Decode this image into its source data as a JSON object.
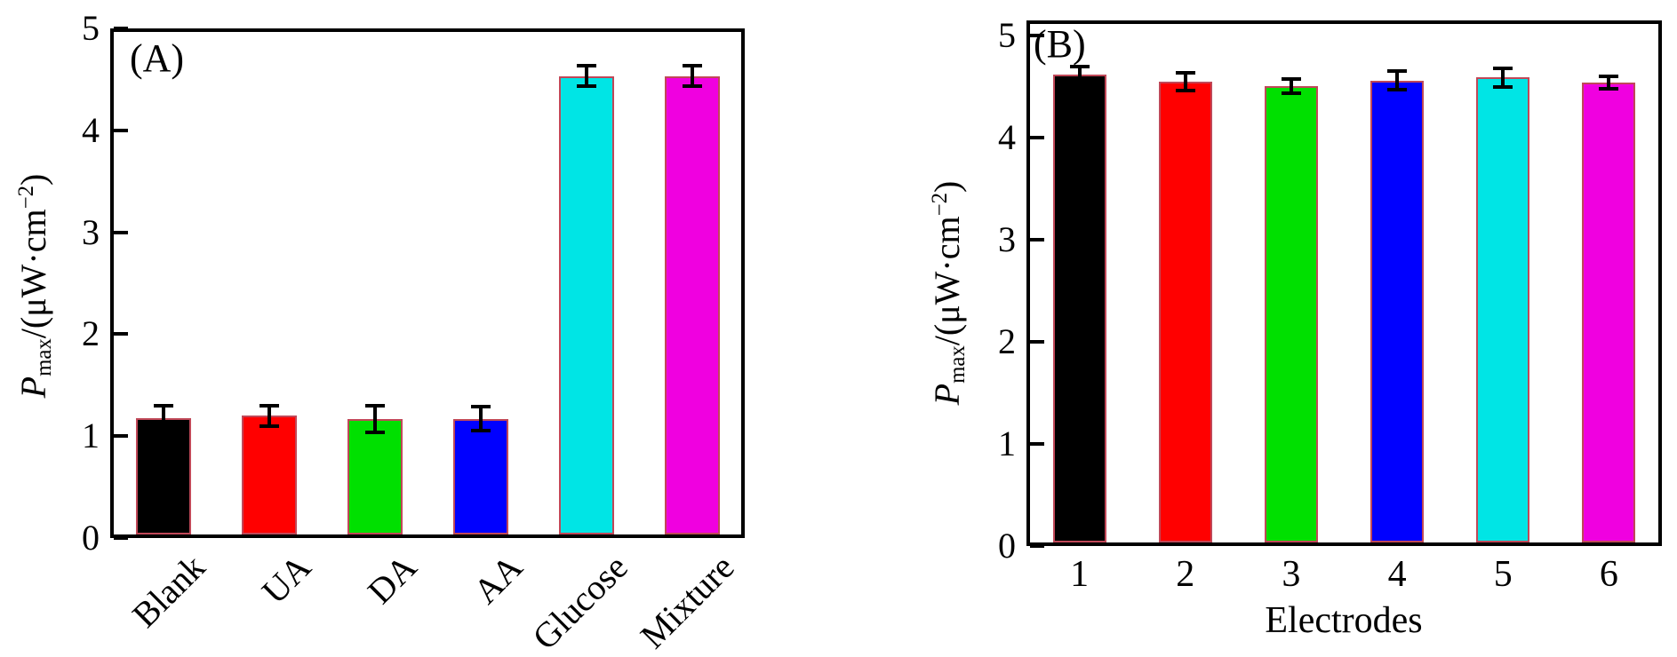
{
  "figure_background": "#ffffff",
  "bar_edge_color": "#c04858",
  "axis_color": "#000000",
  "ylabel_parts": {
    "p": "P",
    "sub": "max",
    "mid": "/(μW·cm",
    "sup": "−2",
    "end": ")"
  },
  "chart_data": [
    {
      "type": "bar",
      "panel_label": "(A)",
      "categories": [
        "Blank",
        "UA",
        "DA",
        "AA",
        "Glucose",
        "Mixture"
      ],
      "values": [
        1.18,
        1.2,
        1.17,
        1.17,
        4.53,
        4.53
      ],
      "errors": [
        0.12,
        0.1,
        0.13,
        0.12,
        0.1,
        0.1
      ],
      "bar_colors": [
        "#000000",
        "#ff0000",
        "#00e000",
        "#0000ff",
        "#00e5e5",
        "#f000e0"
      ],
      "ylabel": "P_max/(μW·cm⁻²)",
      "xlabel": "",
      "ylim": [
        0,
        5
      ],
      "ytick_labels": [
        "0",
        "1",
        "2",
        "3",
        "4",
        "5"
      ],
      "grid": "off",
      "legend": "none"
    },
    {
      "type": "bar",
      "panel_label": "(B)",
      "categories": [
        "1",
        "2",
        "3",
        "4",
        "5",
        "6"
      ],
      "values": [
        4.62,
        4.55,
        4.51,
        4.56,
        4.59,
        4.54
      ],
      "errors": [
        0.08,
        0.09,
        0.07,
        0.09,
        0.09,
        0.06
      ],
      "bar_colors": [
        "#000000",
        "#ff0000",
        "#00e000",
        "#0000ff",
        "#00e5e5",
        "#f000e0"
      ],
      "ylabel": "P_max/(μW·cm⁻²)",
      "xlabel": "Electrodes",
      "ylim": [
        0,
        5.15
      ],
      "ytick_labels": [
        "0",
        "1",
        "2",
        "3",
        "4",
        "5"
      ],
      "grid": "off",
      "legend": "none"
    }
  ]
}
